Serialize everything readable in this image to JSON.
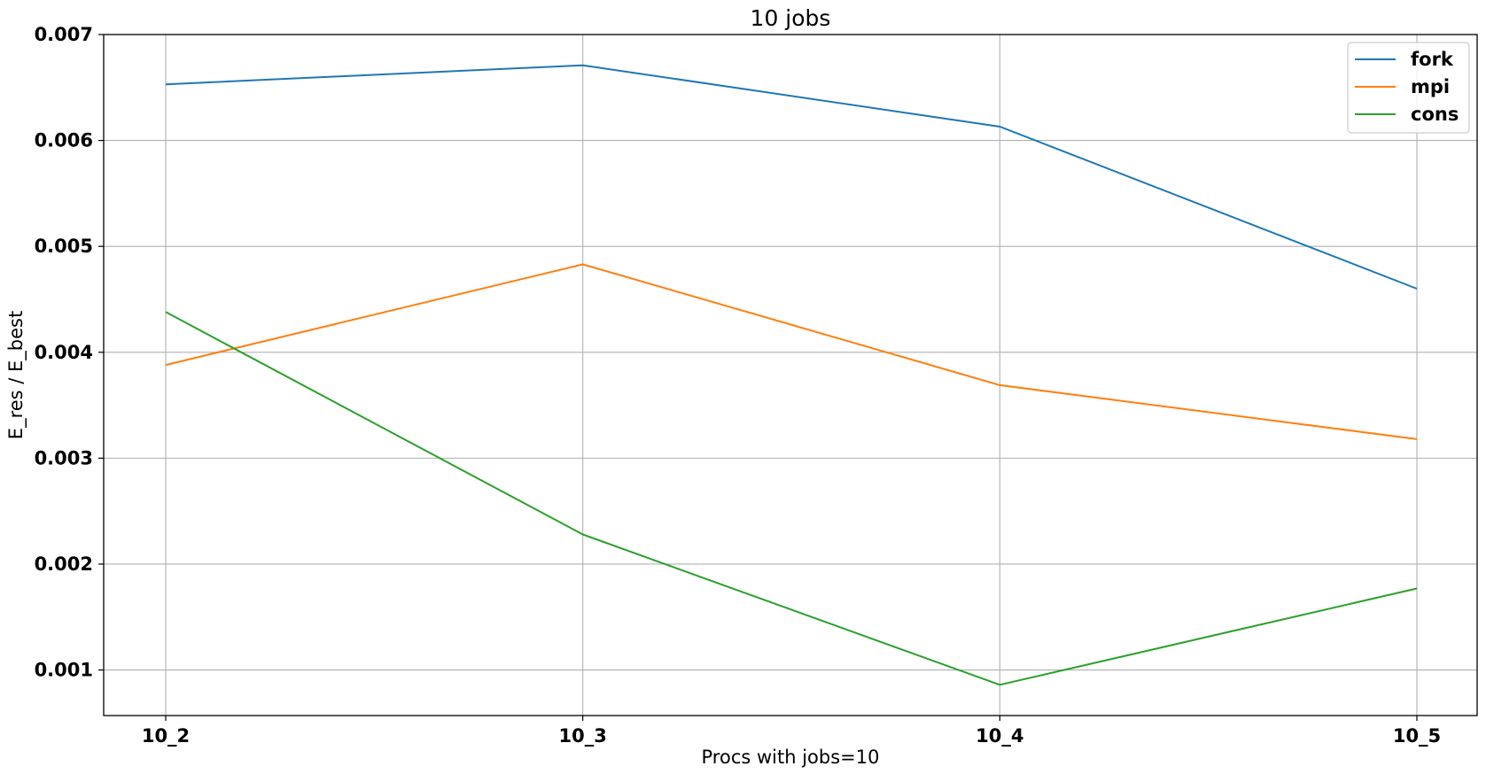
{
  "chart_data": {
    "type": "line",
    "title": "10 jobs",
    "xlabel": "Procs with jobs=10",
    "ylabel": "E_res / E_best",
    "categories": [
      "10_2",
      "10_3",
      "10_4",
      "10_5"
    ],
    "ylim": [
      0.00057,
      0.007
    ],
    "yticks": [
      0.001,
      0.002,
      0.003,
      0.004,
      0.005,
      0.006,
      0.007
    ],
    "ytick_labels": [
      "0.001",
      "0.002",
      "0.003",
      "0.004",
      "0.005",
      "0.006",
      "0.007"
    ],
    "grid": true,
    "legend_position": "top-right",
    "series": [
      {
        "name": "fork",
        "color": "#1f77b4",
        "values": [
          0.00653,
          0.00671,
          0.00613,
          0.0046
        ]
      },
      {
        "name": "mpi",
        "color": "#ff7f0e",
        "values": [
          0.00388,
          0.00483,
          0.00369,
          0.00318
        ]
      },
      {
        "name": "cons",
        "color": "#2ca02c",
        "values": [
          0.00438,
          0.00228,
          0.00086,
          0.00177
        ]
      }
    ]
  }
}
